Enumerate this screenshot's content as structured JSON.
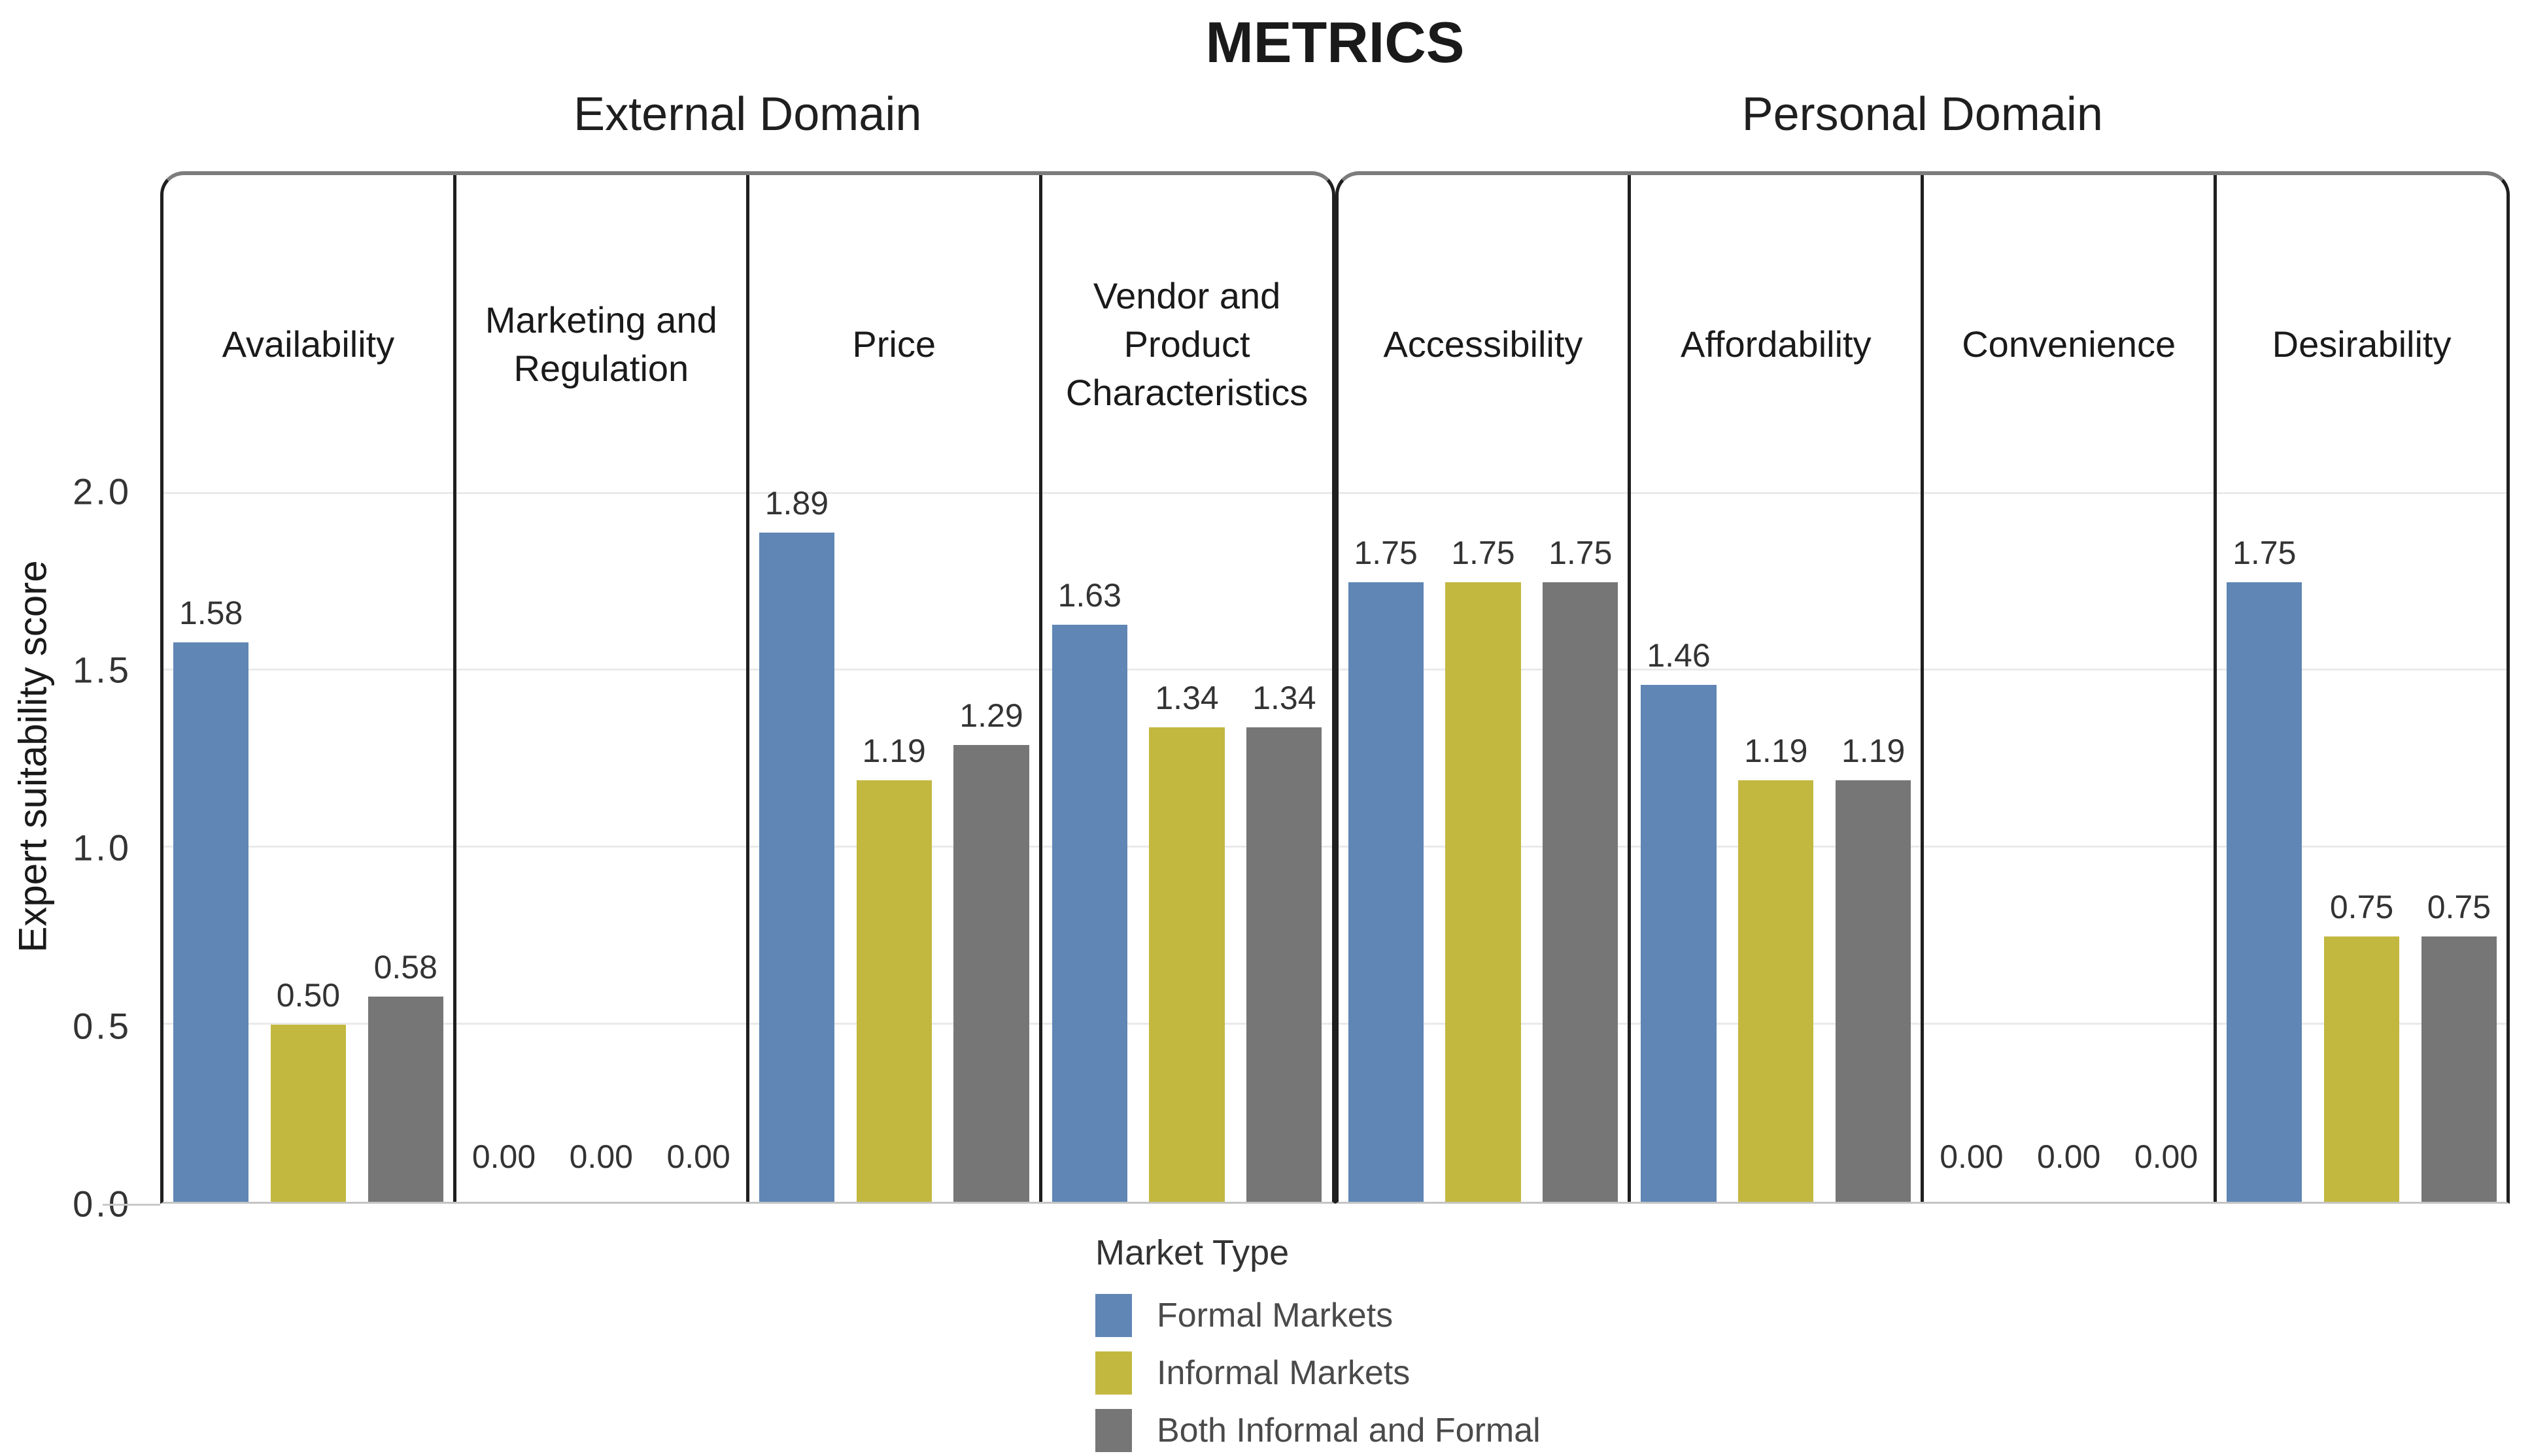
{
  "title": "METRICS",
  "y_axis": {
    "label": "Expert suitability score",
    "ticks": [
      {
        "label": "0.0",
        "value": 0.0
      },
      {
        "label": "0.5",
        "value": 0.5
      },
      {
        "label": "1.0",
        "value": 1.0
      },
      {
        "label": "1.5",
        "value": 1.5
      },
      {
        "label": "2.0",
        "value": 2.0
      }
    ]
  },
  "legend": {
    "title": "Market Type",
    "items": [
      {
        "label": "Formal Markets",
        "color": "#5f86b5"
      },
      {
        "label": "Informal Markets",
        "color": "#c2b840"
      },
      {
        "label": "Both Informal and Formal",
        "color": "#767676"
      }
    ]
  },
  "chart_data": {
    "type": "bar",
    "title": "METRICS",
    "xlabel": "",
    "ylabel": "Expert suitability score",
    "ylim": [
      0,
      2.0
    ],
    "yticks": [
      0.0,
      0.5,
      1.0,
      1.5,
      2.0
    ],
    "grid": true,
    "legend_position": "bottom-left",
    "categories": [
      "Availability",
      "Marketing and Regulation",
      "Price",
      "Vendor and Product Characteristics",
      "Accessibility",
      "Affordability",
      "Convenience",
      "Desirability"
    ],
    "groups": [
      {
        "label": "External Domain",
        "category_indexes": [
          0,
          1,
          2,
          3
        ]
      },
      {
        "label": "Personal Domain",
        "category_indexes": [
          4,
          5,
          6,
          7
        ]
      }
    ],
    "series": [
      {
        "name": "Formal Markets",
        "color": "#5f86b5",
        "values": [
          1.58,
          0.0,
          1.89,
          1.63,
          1.75,
          1.46,
          0.0,
          1.75
        ]
      },
      {
        "name": "Informal Markets",
        "color": "#c2b840",
        "values": [
          0.5,
          0.0,
          1.19,
          1.34,
          1.75,
          1.19,
          0.0,
          0.75
        ]
      },
      {
        "name": "Both Informal and Formal",
        "color": "#767676",
        "values": [
          0.58,
          0.0,
          1.29,
          1.34,
          1.75,
          1.19,
          0.0,
          0.75
        ]
      }
    ]
  }
}
